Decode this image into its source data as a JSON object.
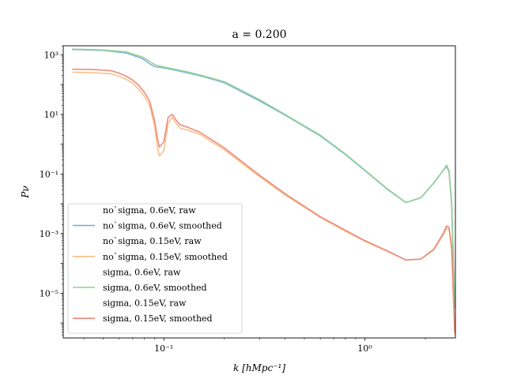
{
  "chart_data": {
    "type": "line",
    "title": "a = 0.200",
    "xlabel": "k [hMpc⁻¹]",
    "ylabel": "Pν",
    "xscale": "log",
    "yscale": "log",
    "xlim": [
      0.0316,
      2.82
    ],
    "ylim": [
      3.16e-07,
      2000.0
    ],
    "x_ticks": [
      {
        "value": 0.1,
        "label": "10⁻¹"
      },
      {
        "value": 1.0,
        "label": "10⁰"
      }
    ],
    "y_ticks": [
      {
        "value": 1000.0,
        "label": "10³"
      },
      {
        "value": 10.0,
        "label": "10¹"
      },
      {
        "value": 0.1,
        "label": "10⁻¹"
      },
      {
        "value": 0.001,
        "label": "10⁻³"
      },
      {
        "value": 1e-05,
        "label": "10⁻⁵"
      }
    ],
    "legend_position": "lower left",
    "series": [
      {
        "name": "no`sigma, 0.6eV, raw",
        "style": "raw-no-line",
        "color": "#1f77b4",
        "x": [],
        "y": []
      },
      {
        "name": "no`sigma, 0.6eV, smoothed",
        "color": "#7fb0d8",
        "x": [
          0.035,
          0.05,
          0.065,
          0.078,
          0.085,
          0.09,
          0.095,
          0.1,
          0.11,
          0.13,
          0.16,
          0.2,
          0.3,
          0.4,
          0.6,
          0.8,
          1.0,
          1.3,
          1.6,
          1.9,
          2.2,
          2.45,
          2.55,
          2.62,
          2.7,
          2.8
        ],
        "y": [
          1500,
          1400,
          1150,
          750,
          500,
          400,
          380,
          360,
          320,
          250,
          180,
          115,
          28,
          9.5,
          1.9,
          0.45,
          0.13,
          0.03,
          0.011,
          0.016,
          0.05,
          0.13,
          0.18,
          0.12,
          0.01,
          3e-06
        ]
      },
      {
        "name": "no`sigma, 0.15eV, raw",
        "style": "raw-no-line",
        "color": "#ff7f0e",
        "x": [],
        "y": []
      },
      {
        "name": "no`sigma, 0.15eV, smoothed",
        "color": "#fbbf85",
        "x": [
          0.035,
          0.045,
          0.055,
          0.06,
          0.065,
          0.07,
          0.075,
          0.08,
          0.085,
          0.09,
          0.093,
          0.095,
          0.1,
          0.105,
          0.11,
          0.115,
          0.12,
          0.13,
          0.15,
          0.2,
          0.3,
          0.4,
          0.6,
          0.8,
          1.0,
          1.3,
          1.6,
          1.9,
          2.2,
          2.45,
          2.55,
          2.62,
          2.7,
          2.8
        ],
        "y": [
          260,
          250,
          230,
          190,
          150,
          110,
          70,
          40,
          20,
          4,
          0.8,
          0.4,
          0.6,
          5,
          8,
          5,
          3.5,
          3,
          2.2,
          0.65,
          0.08,
          0.02,
          0.0035,
          0.0012,
          0.00055,
          0.00025,
          0.00013,
          0.00014,
          0.00028,
          0.0009,
          0.0015,
          0.0014,
          0.0003,
          4e-07
        ]
      },
      {
        "name": "sigma, 0.6eV, raw",
        "style": "raw-no-line",
        "color": "#2ca02c",
        "x": [],
        "y": []
      },
      {
        "name": "sigma, 0.6eV, smoothed",
        "color": "#8fd18f",
        "x": [
          0.035,
          0.05,
          0.065,
          0.078,
          0.085,
          0.09,
          0.095,
          0.1,
          0.11,
          0.13,
          0.16,
          0.2,
          0.3,
          0.4,
          0.6,
          0.8,
          1.0,
          1.3,
          1.6,
          1.9,
          2.2,
          2.45,
          2.55,
          2.62,
          2.7,
          2.8
        ],
        "y": [
          1550,
          1450,
          1250,
          850,
          600,
          470,
          420,
          390,
          340,
          270,
          190,
          125,
          31,
          10,
          2.0,
          0.47,
          0.135,
          0.031,
          0.011,
          0.016,
          0.05,
          0.13,
          0.2,
          0.13,
          0.012,
          4e-06
        ]
      },
      {
        "name": "sigma, 0.15eV, raw",
        "style": "raw-no-line",
        "color": "#d62728",
        "x": [],
        "y": []
      },
      {
        "name": "sigma, 0.15eV, smoothed",
        "color": "#ec8579",
        "x": [
          0.035,
          0.045,
          0.055,
          0.06,
          0.065,
          0.07,
          0.075,
          0.08,
          0.085,
          0.09,
          0.093,
          0.095,
          0.1,
          0.105,
          0.11,
          0.115,
          0.12,
          0.13,
          0.15,
          0.2,
          0.3,
          0.4,
          0.6,
          0.8,
          1.0,
          1.3,
          1.6,
          1.9,
          2.2,
          2.45,
          2.55,
          2.62,
          2.7,
          2.8
        ],
        "y": [
          330,
          320,
          290,
          240,
          190,
          140,
          95,
          55,
          28,
          6,
          1.5,
          0.8,
          1.2,
          8,
          10,
          6.5,
          4.5,
          3.8,
          2.6,
          0.75,
          0.09,
          0.022,
          0.0037,
          0.0013,
          0.00058,
          0.00026,
          0.00013,
          0.00014,
          0.0003,
          0.001,
          0.0018,
          0.0016,
          0.0004,
          5e-07
        ]
      }
    ]
  }
}
